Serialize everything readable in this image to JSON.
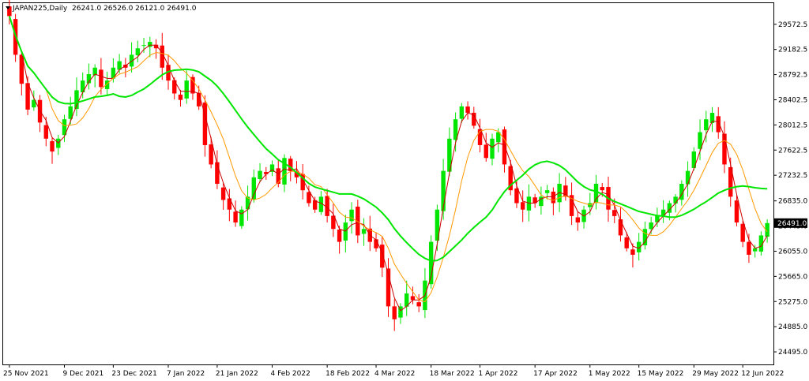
{
  "header": {
    "symbol": "JAPAN225,Daily",
    "ohlc": "26241.0 26526.0 26121.0 26491.0"
  },
  "colors": {
    "bull": "#00e600",
    "bear": "#ff0000",
    "ma_fast": "#cc0000",
    "ma_mid": "#ff9900",
    "ma_slow": "#00e600",
    "price_label_bg": "#000000"
  },
  "chart_data": {
    "type": "candlestick",
    "ylim": [
      24300,
      29900
    ],
    "yticks": [
      "29572.5",
      "29182.5",
      "28792.5",
      "28402.5",
      "28012.5",
      "27622.5",
      "27232.5",
      "26835.0",
      "26445.0",
      "26055.0",
      "25665.0",
      "25275.0",
      "24885.0",
      "24495.0"
    ],
    "xticks": [
      "25 Nov 2021",
      "9 Dec 2021",
      "23 Dec 2021",
      "7 Jan 2022",
      "21 Jan 2022",
      "4 Feb 2022",
      "18 Feb 2022",
      "4 Mar 2022",
      "18 Mar 2022",
      "1 Apr 2022",
      "17 Apr 2022",
      "1 May 2022",
      "15 May 2022",
      "29 May 2022",
      "12 Jun 2022"
    ],
    "current_price": "26491.0",
    "closes": [
      29700,
      29100,
      28650,
      28250,
      28400,
      28050,
      27800,
      27600,
      27800,
      28100,
      28300,
      28550,
      28700,
      28800,
      28900,
      28600,
      28700,
      28900,
      29000,
      28900,
      29100,
      29200,
      29250,
      29300,
      29200,
      28900,
      28700,
      28500,
      28400,
      28700,
      28500,
      28300,
      27700,
      27400,
      27100,
      26850,
      26700,
      26500,
      26700,
      26900,
      27200,
      27300,
      27250,
      27400,
      27100,
      27500,
      27300,
      27200,
      27000,
      26800,
      26700,
      26900,
      26600,
      26400,
      26200,
      26500,
      26700,
      26300,
      26400,
      26200,
      26100,
      25800,
      25200,
      25000,
      25200,
      25400,
      25300,
      25200,
      25600,
      26200,
      26700,
      27300,
      27800,
      28100,
      28300,
      28200,
      28000,
      27700,
      27500,
      27800,
      27900,
      27400,
      27000,
      26800,
      26700,
      26900,
      26800,
      26900,
      27000,
      26800,
      27100,
      26900,
      26600,
      26500,
      26700,
      26800,
      27100,
      27000,
      26700,
      26600,
      26300,
      26100,
      26000,
      26200,
      26400,
      26500,
      26600,
      26700,
      26800,
      26900,
      27100,
      27300,
      27600,
      27900,
      28100,
      28200,
      27900,
      27400,
      26900,
      26500,
      26200,
      26000,
      26100,
      26300,
      26491
    ]
  }
}
